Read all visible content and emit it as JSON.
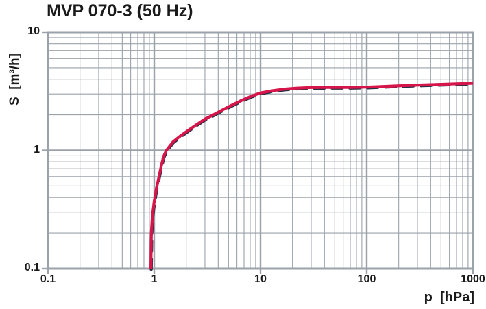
{
  "title": "MVP 070-3 (50 Hz)",
  "chart_data": {
    "type": "line",
    "title": "MVP 070-3 (50 Hz)",
    "xlabel": "p  [hPa]",
    "ylabel": "S  [m³/h]",
    "x_axis": {
      "scale": "log",
      "min": 0.1,
      "max": 1000,
      "ticks": [
        {
          "value": 0.1,
          "label": "0.1"
        },
        {
          "value": 1,
          "label": "1"
        },
        {
          "value": 10,
          "label": "10"
        },
        {
          "value": 100,
          "label": "100"
        },
        {
          "value": 1000,
          "label": "1000"
        }
      ]
    },
    "y_axis": {
      "scale": "log",
      "min": 0.1,
      "max": 10,
      "ticks": [
        {
          "value": 0.1,
          "label": "0.1"
        },
        {
          "value": 1,
          "label": "1"
        },
        {
          "value": 10,
          "label": "10"
        }
      ]
    },
    "grid": {
      "minor_lines": true,
      "major_lines": true,
      "legend": "none"
    },
    "series": [
      {
        "name": "50 Hz",
        "style": "solid",
        "points": [
          [
            0.93,
            0.1
          ],
          [
            0.94,
            0.2
          ],
          [
            0.96,
            0.28
          ],
          [
            1.0,
            0.37
          ],
          [
            1.05,
            0.48
          ],
          [
            1.1,
            0.58
          ],
          [
            1.15,
            0.7
          ],
          [
            1.22,
            0.88
          ],
          [
            1.3,
            1.0
          ],
          [
            1.5,
            1.18
          ],
          [
            1.75,
            1.32
          ],
          [
            2.1,
            1.48
          ],
          [
            2.5,
            1.65
          ],
          [
            3.0,
            1.84
          ],
          [
            3.6,
            2.0
          ],
          [
            4.4,
            2.2
          ],
          [
            5.3,
            2.4
          ],
          [
            6.5,
            2.62
          ],
          [
            8.0,
            2.85
          ],
          [
            10,
            3.06
          ],
          [
            13,
            3.2
          ],
          [
            17,
            3.3
          ],
          [
            22,
            3.36
          ],
          [
            30,
            3.4
          ],
          [
            45,
            3.41
          ],
          [
            70,
            3.41
          ],
          [
            100,
            3.43
          ],
          [
            150,
            3.48
          ],
          [
            220,
            3.53
          ],
          [
            330,
            3.58
          ],
          [
            500,
            3.62
          ],
          [
            700,
            3.66
          ],
          [
            1000,
            3.7
          ]
        ]
      }
    ]
  },
  "colors": {
    "curve_red": "#d6164a",
    "curve_underlay_dark": "#283046",
    "grid_gray": "#9ba2aa",
    "text": "#1a1a1a",
    "background": "#ffffff"
  }
}
